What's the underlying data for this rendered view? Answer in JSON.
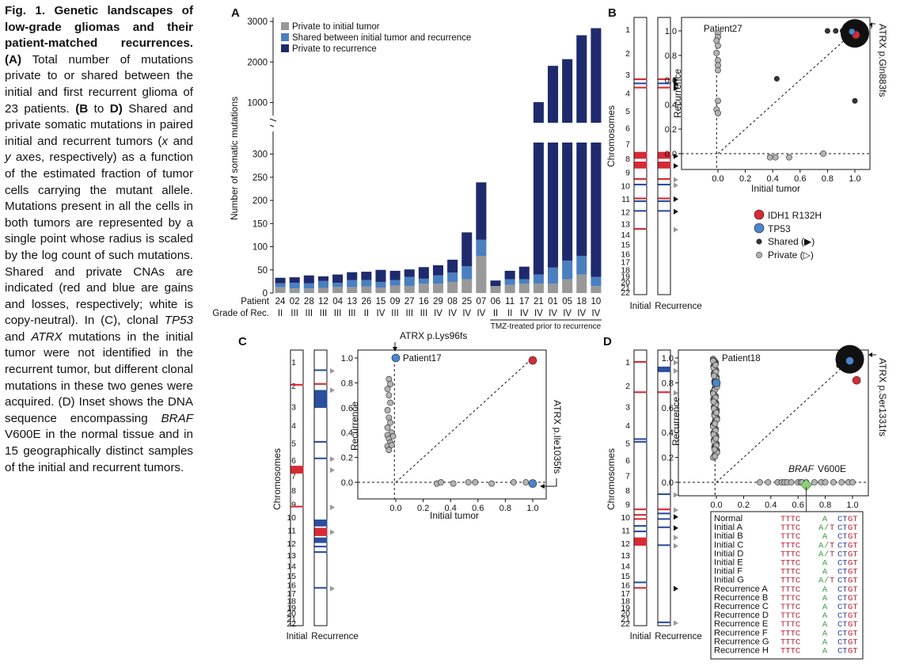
{
  "caption": {
    "title": "Fig. 1. Genetic landscapes of low-grade gliomas and their patient-matched recurrences.",
    "segments": [
      {
        "t": " "
      },
      {
        "t": "(A)",
        "b": true
      },
      {
        "t": " Total number of mutations private to or shared between the initial and first recurrent glioma of 23 patients. "
      },
      {
        "t": "(B",
        "b": true
      },
      {
        "t": " to "
      },
      {
        "t": "D)",
        "b": true
      },
      {
        "t": " Shared and private somatic mutations in paired initial and recurrent tu­mors ("
      },
      {
        "t": "x",
        "i": true
      },
      {
        "t": " and "
      },
      {
        "t": "y",
        "i": true
      },
      {
        "t": " axes, respectively) as a function of the estimated fraction of tumor cells carrying the mutant allele. Mutations present in all the cells in both tumors are represented by a single point whose radius is scaled by the log count of such mutations. Shared and private CNAs are indicated (red and blue are gains and losses, respectively; white is copy-neutral). In (C), clonal "
      },
      {
        "t": "TP53",
        "i": true
      },
      {
        "t": " and "
      },
      {
        "t": "ATRX",
        "i": true
      },
      {
        "t": " mu­tations in the initial tumor were not identified in the recurrent tumor, but different clonal muta­tions in these two genes were ac­quired. (D) Inset shows the DNA sequence encompassing "
      },
      {
        "t": "BRAF",
        "i": true
      },
      {
        "t": " V600E in the normal tissue and in 15 geographically distinct sam­ples of the initial and recurrent tumors."
      }
    ]
  },
  "panels": {
    "A": "A",
    "B": "B",
    "C": "C",
    "D": "D"
  },
  "colors": {
    "private_initial": "#999999",
    "shared": "#4a7fc0",
    "private_recurrence": "#1f2a6e",
    "gain": "#d62b35",
    "loss": "#2b4f9e",
    "ptGray": "#b4b4b4",
    "ptDark": "#333333",
    "idh1": "#d62b35",
    "tp53": "#4a86cc",
    "dna_red": "#b01e2e",
    "dna_green": "#3a9a3a",
    "dna_blue": "#2b3f9e"
  },
  "chart_data": [
    {
      "type": "bar",
      "panel": "A",
      "ylabel": "Number of somatic mutations",
      "yticks_lower": [
        0,
        50,
        100,
        150,
        200,
        250,
        300
      ],
      "yticks_upper": [
        1000,
        2000,
        3000
      ],
      "ylim_lower": [
        0,
        325
      ],
      "ylim_upper": [
        500,
        3100
      ],
      "axis_break": true,
      "legend": [
        "Private to initial tumor",
        "Shared between initial tumor and recurrence",
        "Private to recurrence"
      ],
      "row_labels": {
        "patient": "Patient",
        "grade": "Grade of Rec."
      },
      "categories": [
        "24",
        "02",
        "28",
        "12",
        "04",
        "13",
        "26",
        "15",
        "09",
        "27",
        "16",
        "29",
        "08",
        "25",
        "07",
        "06",
        "11",
        "17",
        "21",
        "01",
        "05",
        "18",
        "10"
      ],
      "grade": [
        "II",
        "III",
        "III",
        "III",
        "III",
        "III",
        "II",
        "IV",
        "III",
        "III",
        "III",
        "IV",
        "IV",
        "IV",
        "IV",
        "II",
        "II",
        "IV",
        "IV",
        "IV",
        "IV",
        "IV",
        "IV"
      ],
      "series": [
        {
          "name": "Private to initial tumor",
          "values": [
            13,
            10,
            10,
            11,
            13,
            13,
            14,
            12,
            16,
            15,
            20,
            20,
            24,
            30,
            80,
            15,
            18,
            20,
            20,
            20,
            30,
            40,
            15
          ]
        },
        {
          "name": "Shared between initial tumor and recurrence",
          "values": [
            8,
            12,
            11,
            15,
            9,
            15,
            14,
            12,
            12,
            20,
            11,
            18,
            20,
            28,
            35,
            0,
            12,
            10,
            20,
            35,
            40,
            40,
            20
          ]
        },
        {
          "name": "Private to recurrence",
          "values": [
            12,
            12,
            17,
            10,
            18,
            17,
            18,
            26,
            20,
            16,
            25,
            22,
            28,
            73,
            124,
            12,
            18,
            27,
            970,
            1850,
            2000,
            2580,
            2800
          ]
        }
      ],
      "annotation": "TMZ-treated prior to recurrence"
    },
    {
      "type": "scatter",
      "panel": "B",
      "title": "Patient27",
      "xlabel": "Initial tumor",
      "ylabel": "Recurrence",
      "xticks": [
        "0.0",
        "0.2",
        "0.4",
        "0.6",
        "0.8",
        "1.0"
      ],
      "yticks": [
        "0.0",
        "0.2",
        "0.4",
        "0.6",
        "0.8",
        "1.0"
      ],
      "label": "ATRX p.Gln883fs",
      "private_points": [
        [
          0.0,
          0.98
        ],
        [
          0.0,
          0.95
        ],
        [
          -0.01,
          0.92
        ],
        [
          0.0,
          0.88
        ],
        [
          -0.01,
          0.82
        ],
        [
          0.0,
          0.76
        ],
        [
          0.0,
          0.72
        ],
        [
          0.0,
          0.68
        ],
        [
          0.0,
          0.43
        ],
        [
          -0.01,
          0.36
        ],
        [
          0.0,
          0.33
        ],
        [
          0.38,
          -0.03
        ],
        [
          0.42,
          -0.03
        ],
        [
          0.52,
          -0.03
        ],
        [
          0.77,
          0.0
        ]
      ],
      "shared_points": [
        [
          0.43,
          0.61
        ],
        [
          0.8,
          1.0
        ],
        [
          0.86,
          1.0
        ],
        [
          0.91,
          1.0
        ],
        [
          0.96,
          1.0
        ],
        [
          1.0,
          0.43
        ]
      ],
      "clonal_points": [
        [
          1.0,
          0.98
        ]
      ],
      "highlight": [
        {
          "gene": "IDH1 R132H",
          "x": 1.02,
          "y": 0.98
        },
        {
          "gene": "TP53",
          "x": 0.99,
          "y": 1.0
        }
      ]
    },
    {
      "type": "scatter",
      "panel": "C",
      "title": "Patient17",
      "xlabel": "Initial tumor",
      "ylabel": "Recurrence",
      "xticks": [
        "0.0",
        "0.2",
        "0.4",
        "0.6",
        "0.8",
        "1.0"
      ],
      "yticks": [
        "0.0",
        "0.2",
        "0.4",
        "0.6",
        "0.8",
        "1.0"
      ],
      "labels": [
        "ATRX p.Lys96fs",
        "ATRX p.Ile1035fs"
      ],
      "private_points": [
        [
          -0.05,
          0.83
        ],
        [
          -0.04,
          0.79
        ],
        [
          -0.06,
          0.75
        ],
        [
          -0.05,
          0.7
        ],
        [
          -0.04,
          0.64
        ],
        [
          -0.06,
          0.58
        ],
        [
          -0.05,
          0.52
        ],
        [
          -0.04,
          0.48
        ],
        [
          -0.06,
          0.44
        ],
        [
          -0.03,
          0.4
        ],
        [
          -0.06,
          0.38
        ],
        [
          -0.05,
          0.35
        ],
        [
          -0.04,
          0.32
        ],
        [
          -0.06,
          0.29
        ],
        [
          -0.05,
          0.26
        ],
        [
          -0.03,
          0.3
        ],
        [
          -0.02,
          0.37
        ],
        [
          0.3,
          -0.01
        ],
        [
          0.33,
          0.0
        ],
        [
          0.42,
          -0.01
        ],
        [
          0.53,
          0.0
        ],
        [
          0.58,
          0.0
        ],
        [
          0.7,
          -0.01
        ],
        [
          0.86,
          0.0
        ],
        [
          0.95,
          0.0
        ]
      ],
      "highlight": [
        {
          "gene": "TP53",
          "x": 0.0,
          "y": 1.0
        },
        {
          "gene": "IDH1 R132H",
          "x": 1.0,
          "y": 0.98
        },
        {
          "gene": "TP53",
          "x": 1.0,
          "y": -0.01
        }
      ]
    },
    {
      "type": "scatter",
      "panel": "D",
      "title": "Patient18",
      "xlabel": "",
      "ylabel": "Recurrence",
      "xticks": [
        "0.0",
        "0.2",
        "0.4",
        "0.6",
        "0.8",
        "1.0"
      ],
      "yticks": [
        "0.0",
        "0.2",
        "0.4",
        "0.6",
        "0.8",
        "1.0"
      ],
      "label": "ATRX p.Ser1331fs",
      "braf_label": "BRAF V600E",
      "private_x_points": [
        0.32,
        0.38,
        0.45,
        0.48,
        0.5,
        0.52,
        0.55,
        0.6,
        0.62,
        0.63,
        0.66,
        0.72,
        0.77,
        0.8,
        0.86,
        0.92,
        0.97,
        1.0
      ],
      "braf_point": [
        0.66,
        -0.02
      ],
      "shared_points": [
        [
          0.9,
          0.94
        ],
        [
          0.93,
          0.97
        ]
      ],
      "highlight": [
        {
          "gene": "TP53",
          "x": 0.0,
          "y": 0.8
        },
        {
          "gene": "IDH1 R132H",
          "x": 1.03,
          "y": 0.82
        },
        {
          "gene": "TP53",
          "x": 0.98,
          "y": 0.99
        }
      ]
    }
  ],
  "chromosomes": {
    "axis_label": "Chromosomes",
    "col_initial": "Initial",
    "col_recurrence": "Recurrence",
    "labels": [
      "1",
      "2",
      "3",
      "4",
      "5",
      "6",
      "7",
      "8",
      "9",
      "10",
      "11",
      "12",
      "13",
      "14",
      "15",
      "16",
      "17",
      "18",
      "19",
      "20",
      "21",
      "22"
    ],
    "B": {
      "initial": [
        {
          "c": "gain",
          "y": 0.22
        },
        {
          "c": "loss",
          "y": 0.235
        },
        {
          "c": "gain",
          "y": 0.25
        },
        {
          "c": "gain",
          "y": 0.485,
          "h": 0.025
        },
        {
          "c": "gain",
          "y": 0.52,
          "h": 0.025
        },
        {
          "c": "gain",
          "y": 0.58
        },
        {
          "c": "loss",
          "y": 0.6
        },
        {
          "c": "gain",
          "y": 0.65
        },
        {
          "c": "loss",
          "y": 0.66
        },
        {
          "c": "loss",
          "y": 0.695
        },
        {
          "c": "gain",
          "y": 0.76
        }
      ],
      "recurrence": [
        {
          "c": "gain",
          "y": 0.22
        },
        {
          "c": "loss",
          "y": 0.235
        },
        {
          "c": "gain",
          "y": 0.25
        },
        {
          "c": "gain",
          "y": 0.485,
          "h": 0.025
        },
        {
          "c": "gain",
          "y": 0.52,
          "h": 0.025
        },
        {
          "c": "gain",
          "y": 0.58
        },
        {
          "c": "loss",
          "y": 0.6
        },
        {
          "c": "gain",
          "y": 0.65
        },
        {
          "c": "loss",
          "y": 0.66
        },
        {
          "c": "loss",
          "y": 0.695
        }
      ],
      "arrows": [
        {
          "y": 0.22,
          "s": "black"
        },
        {
          "y": 0.235,
          "s": "black"
        },
        {
          "y": 0.25,
          "s": "black"
        },
        {
          "y": 0.495,
          "s": "black"
        },
        {
          "y": 0.53,
          "s": "black"
        },
        {
          "y": 0.58,
          "s": "gray"
        },
        {
          "y": 0.6,
          "s": "gray"
        },
        {
          "y": 0.65,
          "s": "black"
        },
        {
          "y": 0.695,
          "s": "black"
        },
        {
          "y": 0.76,
          "s": "gray"
        }
      ]
    },
    "C": {
      "initial": [
        {
          "c": "gain",
          "y": 0.123
        },
        {
          "c": "gain",
          "y": 0.42,
          "h": 0.028
        },
        {
          "c": "gain",
          "y": 0.565
        }
      ],
      "recurrence": [
        {
          "c": "loss",
          "y": 0.07
        },
        {
          "c": "gain",
          "y": 0.12
        },
        {
          "c": "loss",
          "y": 0.145,
          "h": 0.065
        },
        {
          "c": "loss",
          "y": 0.33
        },
        {
          "c": "loss",
          "y": 0.39
        },
        {
          "c": "loss",
          "y": 0.615,
          "h": 0.025
        },
        {
          "c": "gain",
          "y": 0.645,
          "h": 0.03
        },
        {
          "c": "loss",
          "y": 0.68,
          "h": 0.02
        },
        {
          "c": "loss",
          "y": 0.71
        },
        {
          "c": "loss",
          "y": 0.73
        },
        {
          "c": "loss",
          "y": 0.86
        }
      ],
      "arrows": [
        {
          "y": 0.07,
          "s": "gray"
        },
        {
          "y": 0.14,
          "s": "gray"
        },
        {
          "y": 0.39,
          "s": "gray"
        },
        {
          "y": 0.43,
          "s": "gray"
        },
        {
          "y": 0.565,
          "s": "gray"
        },
        {
          "y": 0.655,
          "s": "gray"
        },
        {
          "y": 0.86,
          "s": "gray"
        }
      ]
    },
    "D": {
      "initial": [
        {
          "c": "gain",
          "y": 0.04
        },
        {
          "c": "gain",
          "y": 0.15
        },
        {
          "c": "loss",
          "y": 0.32
        },
        {
          "c": "loss",
          "y": 0.33
        },
        {
          "c": "gain",
          "y": 0.575
        },
        {
          "c": "gain",
          "y": 0.595
        },
        {
          "c": "gain",
          "y": 0.61
        },
        {
          "c": "loss",
          "y": 0.635
        },
        {
          "c": "loss",
          "y": 0.655
        },
        {
          "c": "gain",
          "y": 0.68,
          "h": 0.03
        },
        {
          "c": "loss",
          "y": 0.84
        },
        {
          "c": "gain",
          "y": 0.86
        }
      ],
      "recurrence": [
        {
          "c": "loss",
          "y": 0.06,
          "h": 0.02
        },
        {
          "c": "gain",
          "y": 0.15
        },
        {
          "c": "loss",
          "y": 0.52
        },
        {
          "c": "gain",
          "y": 0.575
        },
        {
          "c": "loss",
          "y": 0.59
        },
        {
          "c": "loss",
          "y": 0.61
        },
        {
          "c": "loss",
          "y": 0.64
        },
        {
          "c": "loss",
          "y": 0.705
        },
        {
          "c": "loss",
          "y": 0.985
        }
      ],
      "arrows": [
        {
          "y": 0.04,
          "s": "gray"
        },
        {
          "y": 0.07,
          "s": "gray"
        },
        {
          "y": 0.15,
          "s": "gray"
        },
        {
          "y": 0.52,
          "s": "gray"
        },
        {
          "y": 0.575,
          "s": "gray"
        },
        {
          "y": 0.6,
          "s": "black"
        },
        {
          "y": 0.64,
          "s": "black"
        },
        {
          "y": 0.675,
          "s": "gray"
        },
        {
          "y": 0.705,
          "s": "gray"
        },
        {
          "y": 0.86,
          "s": "black"
        },
        {
          "y": 0.985,
          "s": "gray"
        }
      ]
    }
  },
  "legend_B": {
    "items": [
      "IDH1 R132H",
      "TP53",
      "Shared (▶)",
      "Private (▷)"
    ]
  },
  "dna_inset": {
    "rows": [
      {
        "label": "Normal",
        "a": "TTTC",
        "m": "A",
        "b": "CTGT"
      },
      {
        "label": "Initial A",
        "a": "TTTC",
        "m": "A/T",
        "b": "CTGT"
      },
      {
        "label": "Initial B",
        "a": "TTTC",
        "m": "A",
        "b": "CTGT"
      },
      {
        "label": "Initial C",
        "a": "TTTC",
        "m": "A/T",
        "b": "CTGT"
      },
      {
        "label": "Initial D",
        "a": "TTTC",
        "m": "A/T",
        "b": "CTGT"
      },
      {
        "label": "Initial E",
        "a": "TTTC",
        "m": "A",
        "b": "CTGT"
      },
      {
        "label": "Initial F",
        "a": "TTTC",
        "m": "A",
        "b": "CTGT"
      },
      {
        "label": "Initial G",
        "a": "TTTC",
        "m": "A/T",
        "b": "CTGT"
      },
      {
        "label": "Recurrence A",
        "a": "TTTC",
        "m": "A",
        "b": "CTGT"
      },
      {
        "label": "Recurrence B",
        "a": "TTTC",
        "m": "A",
        "b": "CTGT"
      },
      {
        "label": "Recurrence C",
        "a": "TTTC",
        "m": "A",
        "b": "CTGT"
      },
      {
        "label": "Recurrence D",
        "a": "TTTC",
        "m": "A",
        "b": "CTGT"
      },
      {
        "label": "Recurrence E",
        "a": "TTTC",
        "m": "A",
        "b": "CTGT"
      },
      {
        "label": "Recurrence F",
        "a": "TTTC",
        "m": "A",
        "b": "CTGT"
      },
      {
        "label": "Recurrence G",
        "a": "TTTC",
        "m": "A",
        "b": "CTGT"
      },
      {
        "label": "Recurrence H",
        "a": "TTTC",
        "m": "A",
        "b": "CTGT"
      }
    ]
  }
}
